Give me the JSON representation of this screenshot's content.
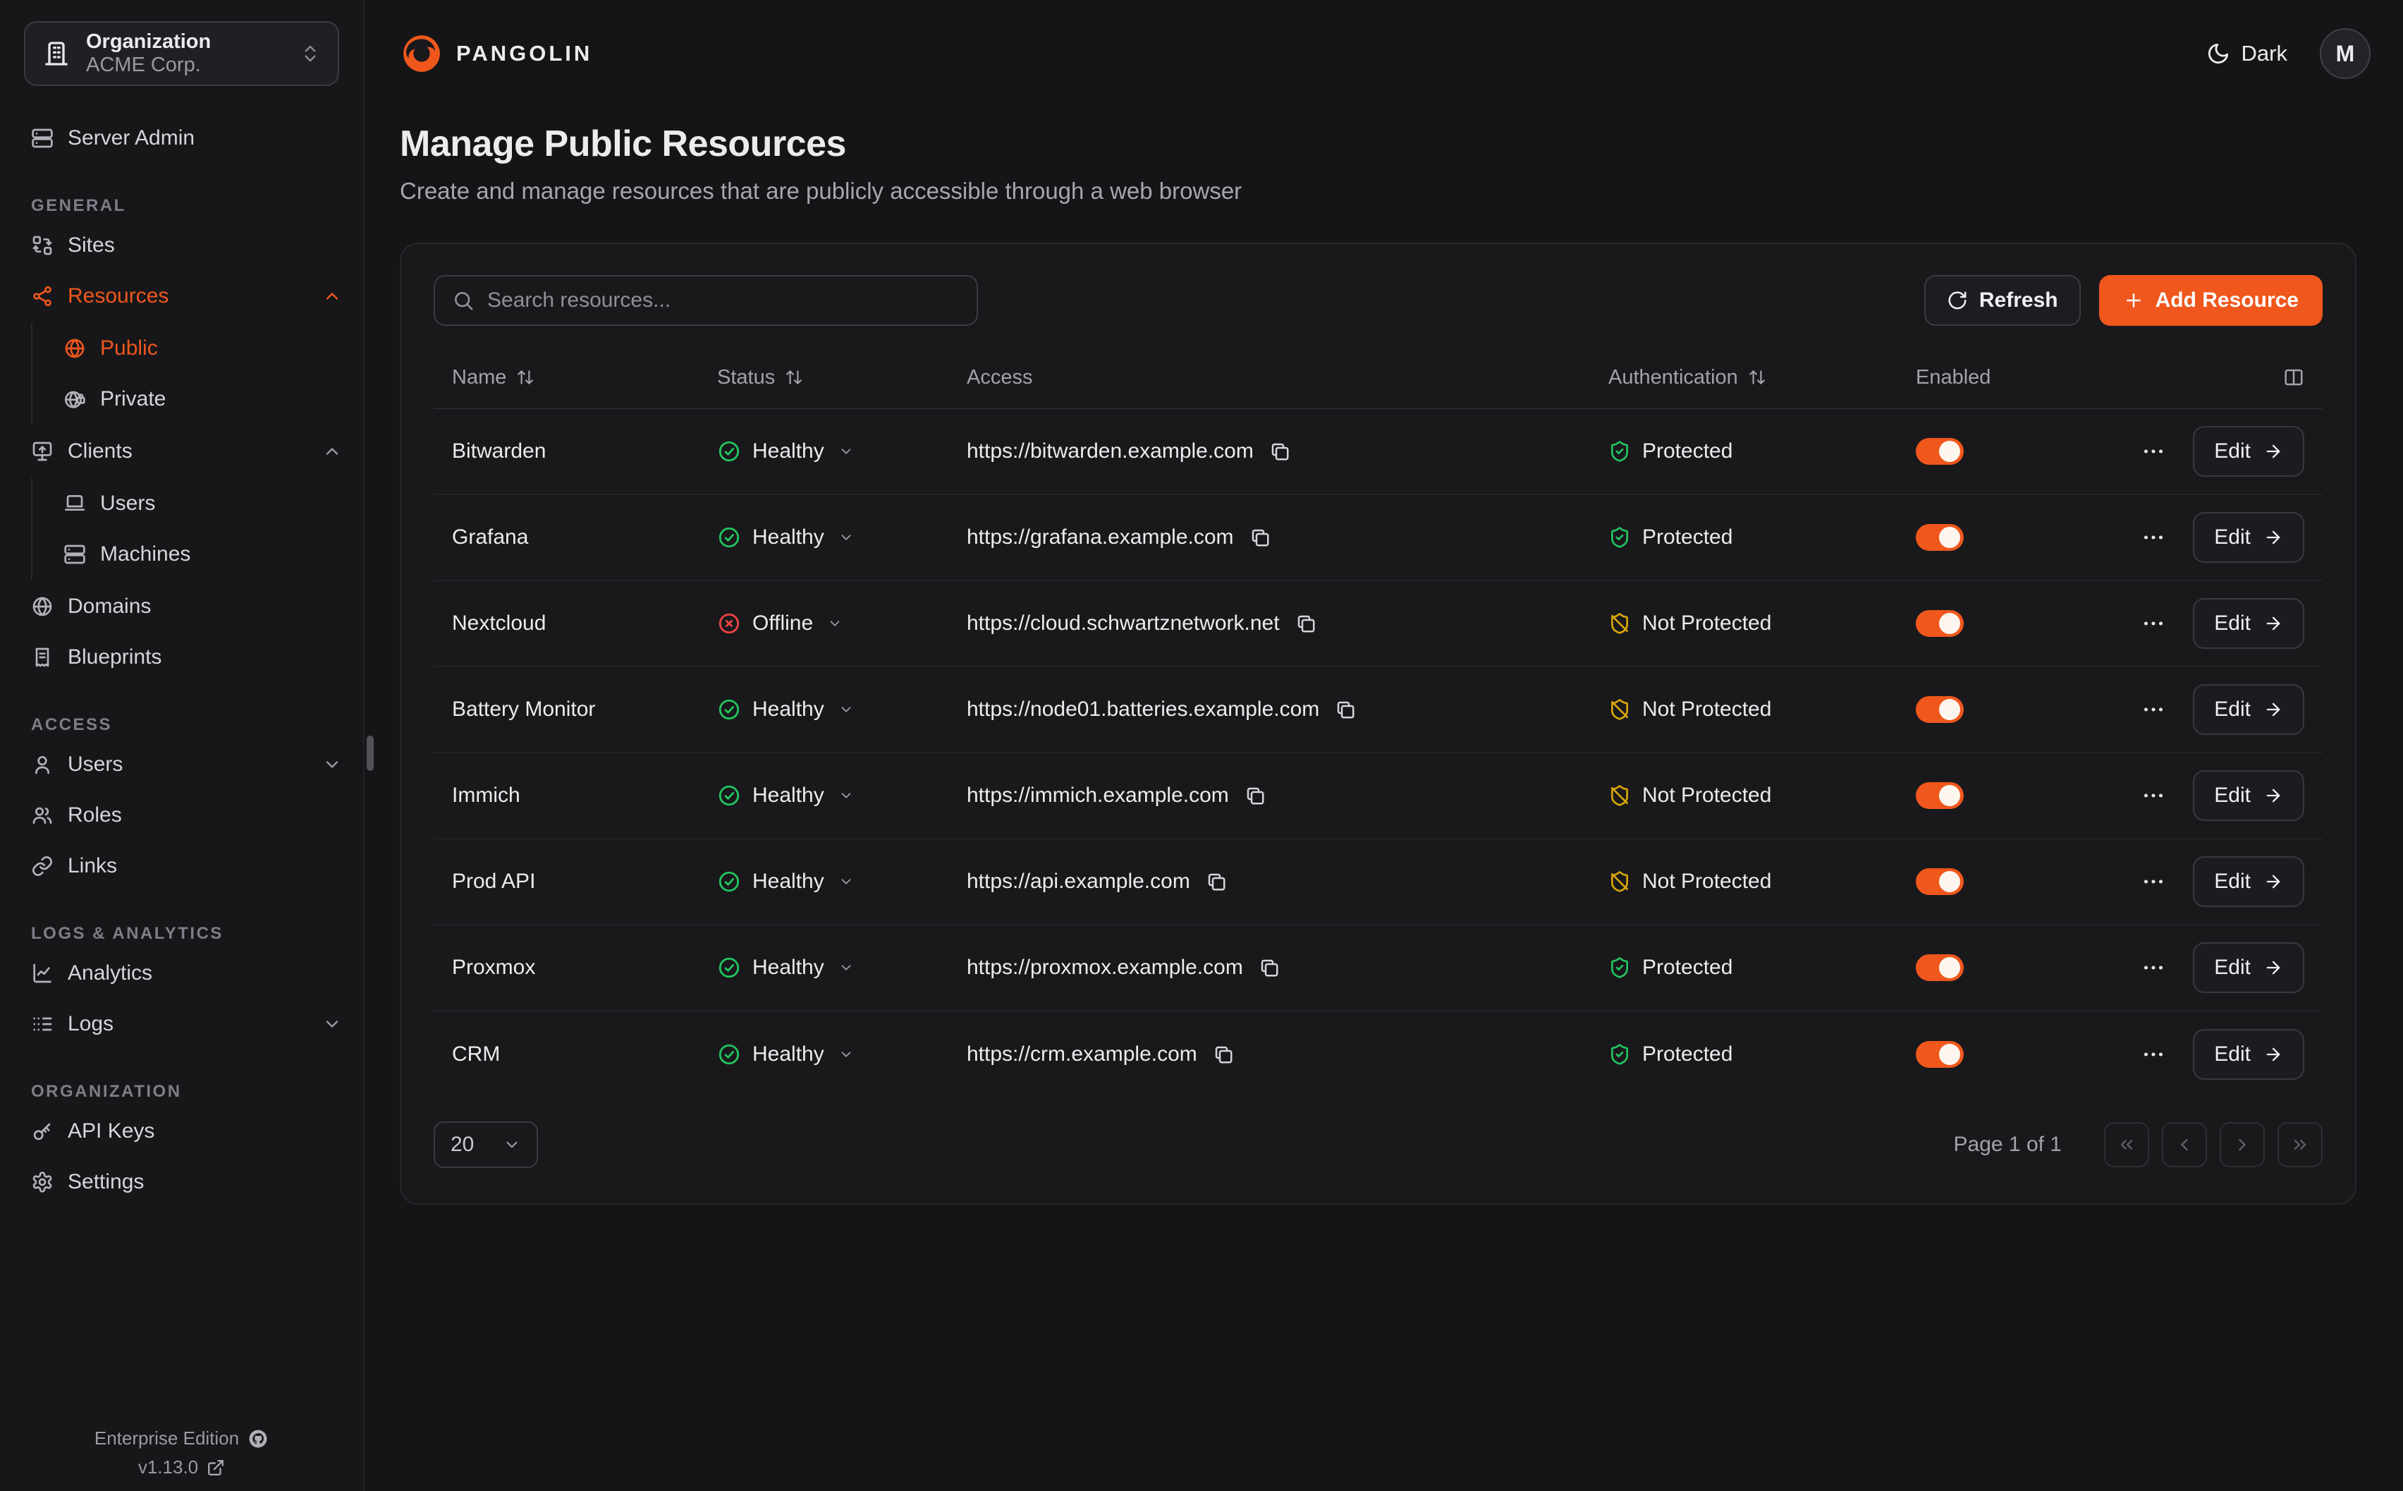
{
  "colors": {
    "accent": "#F0571C",
    "healthy": "#22C55E",
    "offline": "#EF4444",
    "warning": "#D9A60B"
  },
  "org_switcher": {
    "label": "Organization",
    "value": "ACME Corp."
  },
  "sidebar": {
    "top_item": {
      "label": "Server Admin",
      "icon": "server"
    },
    "sections": [
      {
        "label": "GENERAL",
        "items": [
          {
            "label": "Sites",
            "icon": "sites"
          },
          {
            "label": "Resources",
            "icon": "resources",
            "active": true,
            "chevron": "up",
            "children": [
              {
                "label": "Public",
                "icon": "globe",
                "active": true
              },
              {
                "label": "Private",
                "icon": "globe-lock"
              }
            ]
          },
          {
            "label": "Clients",
            "icon": "monitor-up",
            "chevron": "up",
            "children": [
              {
                "label": "Users",
                "icon": "laptop"
              },
              {
                "label": "Machines",
                "icon": "server"
              }
            ]
          },
          {
            "label": "Domains",
            "icon": "globe"
          },
          {
            "label": "Blueprints",
            "icon": "receipt"
          }
        ]
      },
      {
        "label": "ACCESS",
        "items": [
          {
            "label": "Users",
            "icon": "user",
            "chevron": "down"
          },
          {
            "label": "Roles",
            "icon": "users"
          },
          {
            "label": "Links",
            "icon": "link"
          }
        ]
      },
      {
        "label": "LOGS & ANALYTICS",
        "items": [
          {
            "label": "Analytics",
            "icon": "chart"
          },
          {
            "label": "Logs",
            "icon": "logs",
            "chevron": "down"
          }
        ]
      },
      {
        "label": "ORGANIZATION",
        "items": [
          {
            "label": "API Keys",
            "icon": "key"
          },
          {
            "label": "Settings",
            "icon": "settings"
          }
        ]
      }
    ],
    "footer": {
      "edition": "Enterprise Edition",
      "version": "v1.13.0"
    }
  },
  "topbar": {
    "brand": "PANGOLIN",
    "theme_label": "Dark",
    "avatar_initial": "M"
  },
  "page": {
    "title": "Manage Public Resources",
    "subtitle": "Create and manage resources that are publicly accessible through a web browser"
  },
  "toolbar": {
    "search_placeholder": "Search resources...",
    "refresh_label": "Refresh",
    "add_label": "Add Resource"
  },
  "table": {
    "columns": [
      {
        "label": "Name",
        "sortable": true
      },
      {
        "label": "Status",
        "sortable": true
      },
      {
        "label": "Access",
        "sortable": false
      },
      {
        "label": "Authentication",
        "sortable": true
      },
      {
        "label": "Enabled",
        "sortable": false
      }
    ],
    "edit_label": "Edit",
    "rows": [
      {
        "name": "Bitwarden",
        "status": "healthy",
        "status_label": "Healthy",
        "url": "https://bitwarden.example.com",
        "auth": "protected",
        "auth_label": "Protected",
        "enabled": true
      },
      {
        "name": "Grafana",
        "status": "healthy",
        "status_label": "Healthy",
        "url": "https://grafana.example.com",
        "auth": "protected",
        "auth_label": "Protected",
        "enabled": true
      },
      {
        "name": "Nextcloud",
        "status": "offline",
        "status_label": "Offline",
        "url": "https://cloud.schwartznetwork.net",
        "auth": "unprotected",
        "auth_label": "Not Protected",
        "enabled": true
      },
      {
        "name": "Battery Monitor",
        "status": "healthy",
        "status_label": "Healthy",
        "url": "https://node01.batteries.example.com",
        "auth": "unprotected",
        "auth_label": "Not Protected",
        "enabled": true
      },
      {
        "name": "Immich",
        "status": "healthy",
        "status_label": "Healthy",
        "url": "https://immich.example.com",
        "auth": "unprotected",
        "auth_label": "Not Protected",
        "enabled": true
      },
      {
        "name": "Prod API",
        "status": "healthy",
        "status_label": "Healthy",
        "url": "https://api.example.com",
        "auth": "unprotected",
        "auth_label": "Not Protected",
        "enabled": true
      },
      {
        "name": "Proxmox",
        "status": "healthy",
        "status_label": "Healthy",
        "url": "https://proxmox.example.com",
        "auth": "protected",
        "auth_label": "Protected",
        "enabled": true
      },
      {
        "name": "CRM",
        "status": "healthy",
        "status_label": "Healthy",
        "url": "https://crm.example.com",
        "auth": "protected",
        "auth_label": "Protected",
        "enabled": true
      }
    ]
  },
  "pagination": {
    "page_size": "20",
    "label": "Page 1 of 1"
  }
}
